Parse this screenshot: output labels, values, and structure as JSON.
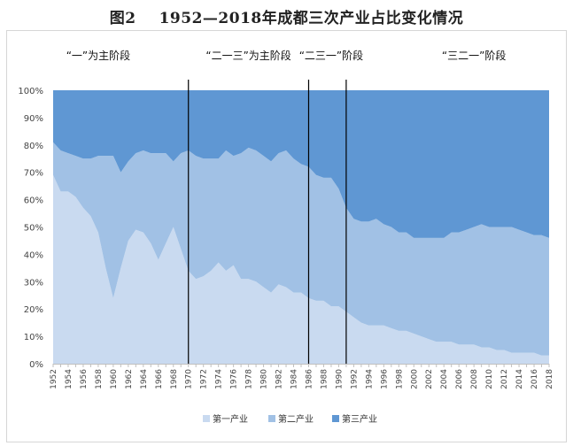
{
  "figure": {
    "label": "图2",
    "title": "1952—2018年成都三次产业占比变化情况"
  },
  "chart_data": {
    "type": "area",
    "stacked": true,
    "normalized_percent": true,
    "x": [
      1952,
      1953,
      1954,
      1955,
      1956,
      1957,
      1958,
      1959,
      1960,
      1961,
      1962,
      1963,
      1964,
      1965,
      1966,
      1967,
      1968,
      1969,
      1970,
      1971,
      1972,
      1973,
      1974,
      1975,
      1976,
      1977,
      1978,
      1979,
      1980,
      1981,
      1982,
      1983,
      1984,
      1985,
      1986,
      1987,
      1988,
      1989,
      1990,
      1991,
      1992,
      1993,
      1994,
      1995,
      1996,
      1997,
      1998,
      1999,
      2000,
      2001,
      2002,
      2003,
      2004,
      2005,
      2006,
      2007,
      2008,
      2009,
      2010,
      2011,
      2012,
      2013,
      2014,
      2015,
      2016,
      2017,
      2018
    ],
    "x_tick_labels": [
      "1952",
      "1954",
      "1956",
      "1958",
      "1960",
      "1962",
      "1964",
      "1966",
      "1968",
      "1970",
      "1972",
      "1974",
      "1976",
      "1978",
      "1980",
      "1982",
      "1984",
      "1986",
      "1988",
      "1990",
      "1992",
      "1994",
      "1996",
      "1998",
      "2000",
      "2002",
      "2004",
      "2006",
      "2008",
      "2010",
      "2012",
      "2014",
      "2016",
      "2018"
    ],
    "y_ticks": [
      "0%",
      "10%",
      "20%",
      "30%",
      "40%",
      "50%",
      "60%",
      "70%",
      "80%",
      "90%",
      "100%"
    ],
    "ylim": [
      0,
      100
    ],
    "series": [
      {
        "name": "第一产业",
        "color": "#c9daf0",
        "values": [
          69,
          63,
          63,
          61,
          57,
          54,
          48,
          35,
          24,
          35,
          45,
          49,
          48,
          44,
          38,
          44,
          50,
          42,
          34,
          31,
          32,
          34,
          37,
          34,
          36,
          31,
          31,
          30,
          28,
          26,
          29,
          28,
          26,
          26,
          24,
          23,
          23,
          21,
          21,
          19,
          17,
          15,
          14,
          14,
          14,
          13,
          12,
          12,
          11,
          10,
          9,
          8,
          8,
          8,
          7,
          7,
          7,
          6,
          6,
          5,
          5,
          4,
          4,
          4,
          4,
          3,
          3
        ]
      },
      {
        "name": "第二产业",
        "color": "#a1c1e5",
        "values": [
          12,
          15,
          14,
          15,
          18,
          21,
          28,
          41,
          52,
          35,
          29,
          28,
          30,
          33,
          39,
          33,
          24,
          35,
          44,
          45,
          43,
          41,
          38,
          44,
          40,
          46,
          48,
          48,
          48,
          48,
          48,
          50,
          49,
          47,
          48,
          46,
          45,
          47,
          43,
          38,
          36,
          37,
          38,
          39,
          37,
          37,
          36,
          36,
          35,
          36,
          37,
          38,
          38,
          40,
          41,
          42,
          43,
          45,
          44,
          45,
          45,
          46,
          45,
          44,
          43,
          44,
          43
        ]
      },
      {
        "name": "第三产业",
        "color": "#5f97d3",
        "values": [
          19,
          22,
          23,
          24,
          25,
          25,
          24,
          24,
          24,
          30,
          26,
          23,
          22,
          23,
          23,
          23,
          26,
          23,
          22,
          24,
          25,
          25,
          25,
          22,
          24,
          23,
          21,
          22,
          24,
          26,
          23,
          22,
          25,
          27,
          28,
          31,
          32,
          32,
          36,
          43,
          47,
          48,
          48,
          47,
          49,
          50,
          52,
          52,
          54,
          54,
          54,
          54,
          54,
          52,
          52,
          51,
          50,
          49,
          50,
          50,
          50,
          50,
          51,
          52,
          53,
          53,
          54
        ]
      }
    ],
    "dividers": [
      1970,
      1986,
      1991
    ],
    "stage_labels": [
      {
        "text": "“一”为主阶段",
        "x": 1958
      },
      {
        "text": "“二一三”为主阶段",
        "x": 1978
      },
      {
        "text": "“二三一”阶段",
        "x": 1989
      },
      {
        "text": "“三二一”阶段",
        "x": 2008
      }
    ],
    "grid": false,
    "legend_position": "bottom"
  }
}
